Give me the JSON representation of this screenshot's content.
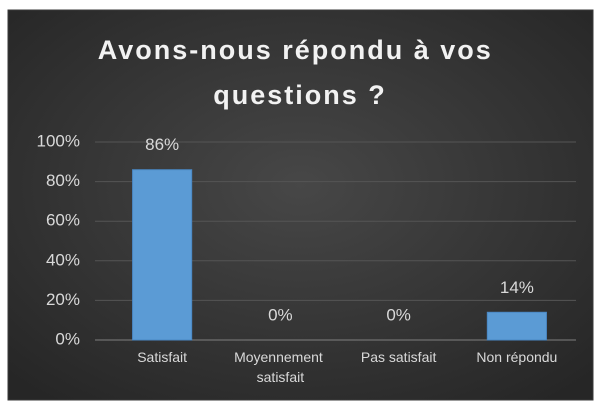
{
  "chart_data": {
    "type": "bar",
    "title": "Avons-nous répondu à vos questions ?",
    "categories": [
      "Satisfait",
      "Moyennement satisfait",
      "Pas satisfait",
      "Non répondu"
    ],
    "values": [
      86,
      0,
      0,
      14
    ],
    "value_labels": [
      "86%",
      "0%",
      "0%",
      "14%"
    ],
    "color": "#5b9bd5",
    "ylim": [
      0,
      100
    ],
    "yticks": [
      {
        "value": 0,
        "label": "0%"
      },
      {
        "value": 20,
        "label": "20%"
      },
      {
        "value": 40,
        "label": "40%"
      },
      {
        "value": 60,
        "label": "60%"
      },
      {
        "value": 80,
        "label": "80%"
      },
      {
        "value": 100,
        "label": "100%"
      }
    ],
    "grid": true
  }
}
